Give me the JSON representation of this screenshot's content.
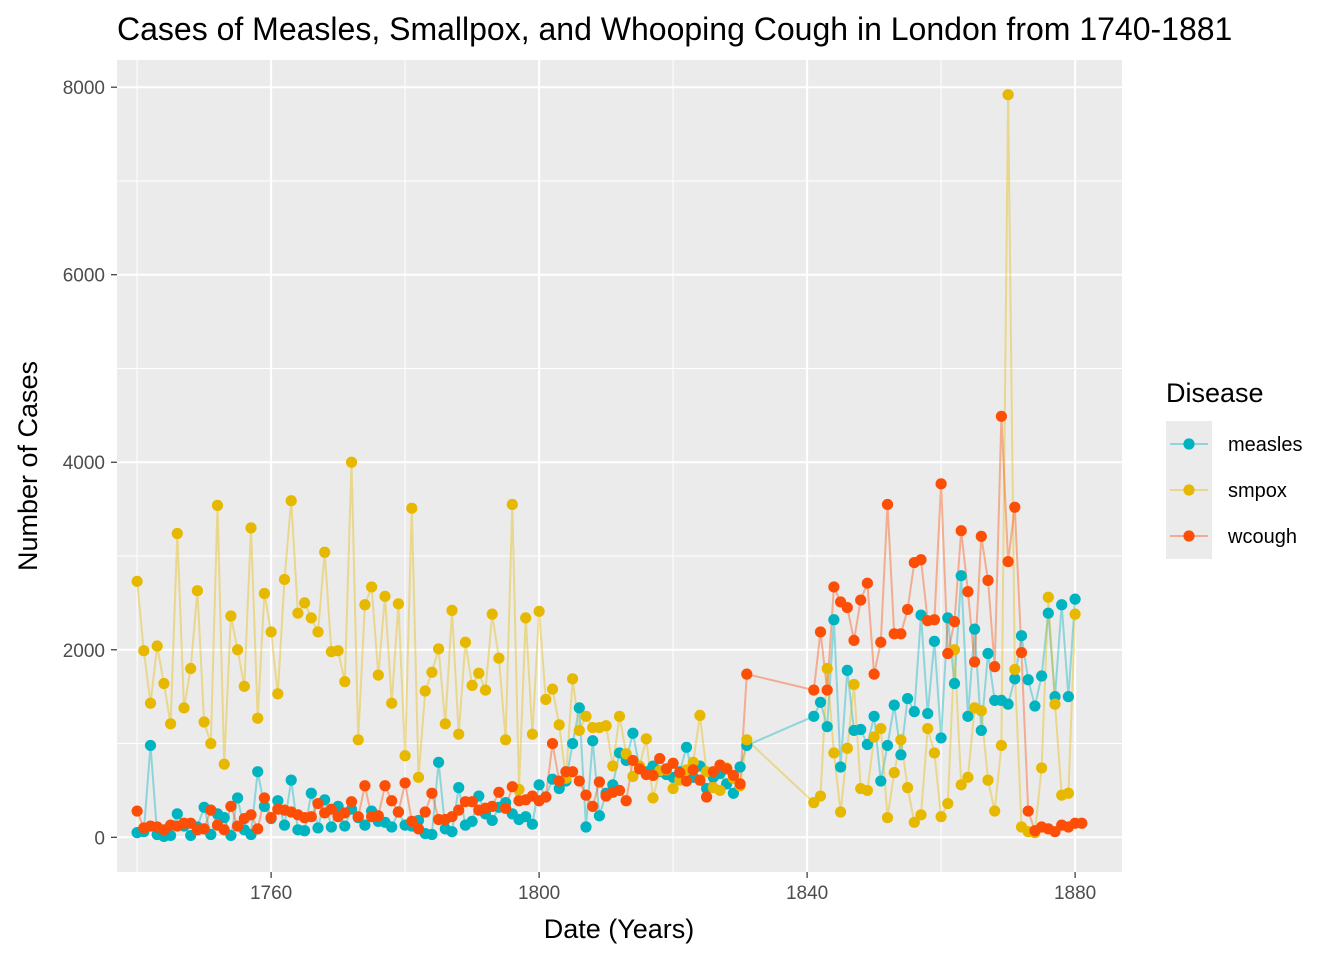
{
  "chart_data": {
    "type": "line",
    "title": "Cases of Measles, Smallpox, and Whooping Cough in London from 1740-1881",
    "xlabel": "Date (Years)",
    "ylabel": "Number of Cases",
    "xlim": [
      1737,
      1887
    ],
    "ylim": [
      -370,
      8290
    ],
    "x_ticks": [
      1760,
      1800,
      1840,
      1880
    ],
    "y_ticks": [
      0,
      2000,
      4000,
      6000,
      8000
    ],
    "grid": true,
    "legend": {
      "title": "Disease",
      "position": "right"
    },
    "years": [
      1740,
      1741,
      1742,
      1743,
      1744,
      1745,
      1746,
      1747,
      1748,
      1749,
      1750,
      1751,
      1752,
      1753,
      1754,
      1755,
      1756,
      1757,
      1758,
      1759,
      1760,
      1761,
      1762,
      1763,
      1764,
      1765,
      1766,
      1767,
      1768,
      1769,
      1770,
      1771,
      1772,
      1773,
      1774,
      1775,
      1776,
      1777,
      1778,
      1779,
      1780,
      1781,
      1782,
      1783,
      1784,
      1785,
      1786,
      1787,
      1788,
      1789,
      1790,
      1791,
      1792,
      1793,
      1794,
      1795,
      1796,
      1797,
      1798,
      1799,
      1800,
      1801,
      1802,
      1803,
      1804,
      1805,
      1806,
      1807,
      1808,
      1809,
      1810,
      1811,
      1812,
      1813,
      1814,
      1815,
      1816,
      1817,
      1818,
      1819,
      1820,
      1821,
      1822,
      1823,
      1824,
      1825,
      1826,
      1827,
      1828,
      1829,
      1830,
      1831,
      1841,
      1842,
      1843,
      1844,
      1845,
      1846,
      1847,
      1848,
      1849,
      1850,
      1851,
      1852,
      1853,
      1854,
      1855,
      1856,
      1857,
      1858,
      1859,
      1860,
      1861,
      1862,
      1863,
      1864,
      1865,
      1866,
      1867,
      1868,
      1869,
      1870,
      1871,
      1872,
      1873,
      1874,
      1875,
      1876,
      1877,
      1878,
      1879,
      1880,
      1881
    ],
    "series": [
      {
        "name": "measles",
        "color": "#00b3c0",
        "values": [
          50,
          60,
          980,
          30,
          10,
          20,
          250,
          120,
          20,
          110,
          320,
          30,
          250,
          210,
          20,
          420,
          80,
          30,
          700,
          330,
          200,
          390,
          130,
          610,
          80,
          70,
          470,
          100,
          400,
          110,
          330,
          120,
          300,
          210,
          130,
          280,
          170,
          160,
          110,
          270,
          130,
          120,
          180,
          40,
          30,
          800,
          90,
          60,
          530,
          130,
          170,
          440,
          250,
          180,
          320,
          370,
          250,
          190,
          220,
          140,
          560,
          430,
          620,
          520,
          600,
          1000,
          1380,
          110,
          1030,
          230,
          470,
          560,
          900,
          820,
          1110,
          740,
          700,
          760,
          700,
          670,
          640,
          700,
          960,
          640,
          760,
          520,
          640,
          680,
          570,
          470,
          750,
          980,
          1290,
          1440,
          1180,
          2320,
          750,
          1780,
          1140,
          1150,
          990,
          1290,
          600,
          980,
          1410,
          880,
          1480,
          1340,
          2370,
          1320,
          2090,
          1060,
          2340,
          1640,
          2790,
          1290,
          2220,
          1140,
          1960,
          1460,
          1460,
          1420,
          1690,
          2150,
          1680,
          1400,
          1720,
          2390,
          1500,
          2480,
          1500,
          2540
        ]
      },
      {
        "name": "smpox",
        "color": "#e7b800",
        "values": [
          2730,
          1990,
          1430,
          2040,
          1640,
          1210,
          3240,
          1380,
          1800,
          2630,
          1230,
          1000,
          3540,
          780,
          2360,
          2000,
          1610,
          3300,
          1270,
          2600,
          2190,
          1530,
          2750,
          3590,
          2390,
          2500,
          2340,
          2190,
          3040,
          1980,
          1990,
          1660,
          4000,
          1040,
          2480,
          2670,
          1730,
          2570,
          1430,
          2490,
          870,
          3510,
          640,
          1560,
          1760,
          2010,
          1210,
          2420,
          1100,
          2080,
          1620,
          1750,
          1570,
          2380,
          1910,
          1040,
          3550,
          510,
          2340,
          1100,
          2410,
          1470,
          1580,
          1200,
          630,
          1690,
          1140,
          1290,
          1170,
          1170,
          1190,
          760,
          1290,
          890,
          650,
          760,
          1050,
          420,
          710,
          720,
          520,
          610,
          720,
          800,
          1300,
          700,
          530,
          500,
          740,
          630,
          550,
          1040,
          370,
          440,
          1800,
          900,
          270,
          950,
          1630,
          520,
          500,
          1070,
          1160,
          210,
          690,
          1040,
          530,
          160,
          240,
          1160,
          900,
          220,
          360,
          2000,
          560,
          640,
          1380,
          1350,
          610,
          280,
          980,
          7920,
          1790,
          110,
          60,
          50,
          740,
          2560,
          1420,
          450,
          470,
          2380
        ]
      },
      {
        "name": "wcough",
        "color": "#fc4e07",
        "values": [
          280,
          100,
          120,
          110,
          80,
          130,
          120,
          150,
          150,
          80,
          90,
          290,
          130,
          80,
          330,
          120,
          200,
          240,
          90,
          420,
          210,
          300,
          290,
          270,
          240,
          210,
          220,
          360,
          260,
          300,
          220,
          260,
          380,
          220,
          550,
          220,
          230,
          550,
          390,
          270,
          580,
          170,
          90,
          270,
          470,
          190,
          190,
          220,
          290,
          380,
          380,
          290,
          310,
          330,
          480,
          310,
          540,
          390,
          400,
          440,
          390,
          430,
          1000,
          600,
          700,
          700,
          600,
          450,
          330,
          590,
          440,
          480,
          500,
          390,
          820,
          730,
          670,
          660,
          840,
          730,
          790,
          690,
          600,
          720,
          610,
          430,
          700,
          770,
          730,
          660,
          570,
          1740,
          1570,
          2190,
          1570,
          2670,
          2510,
          2450,
          2100,
          2530,
          2710,
          1740,
          2080,
          3550,
          2170,
          2170,
          2430,
          2930,
          2960,
          2310,
          2320,
          3770,
          1960,
          2300,
          3270,
          2620,
          1870,
          3210,
          2740,
          1820,
          4490,
          2940,
          3520,
          1970,
          280,
          70,
          110,
          90,
          60,
          130,
          110,
          150,
          150
        ]
      }
    ]
  }
}
